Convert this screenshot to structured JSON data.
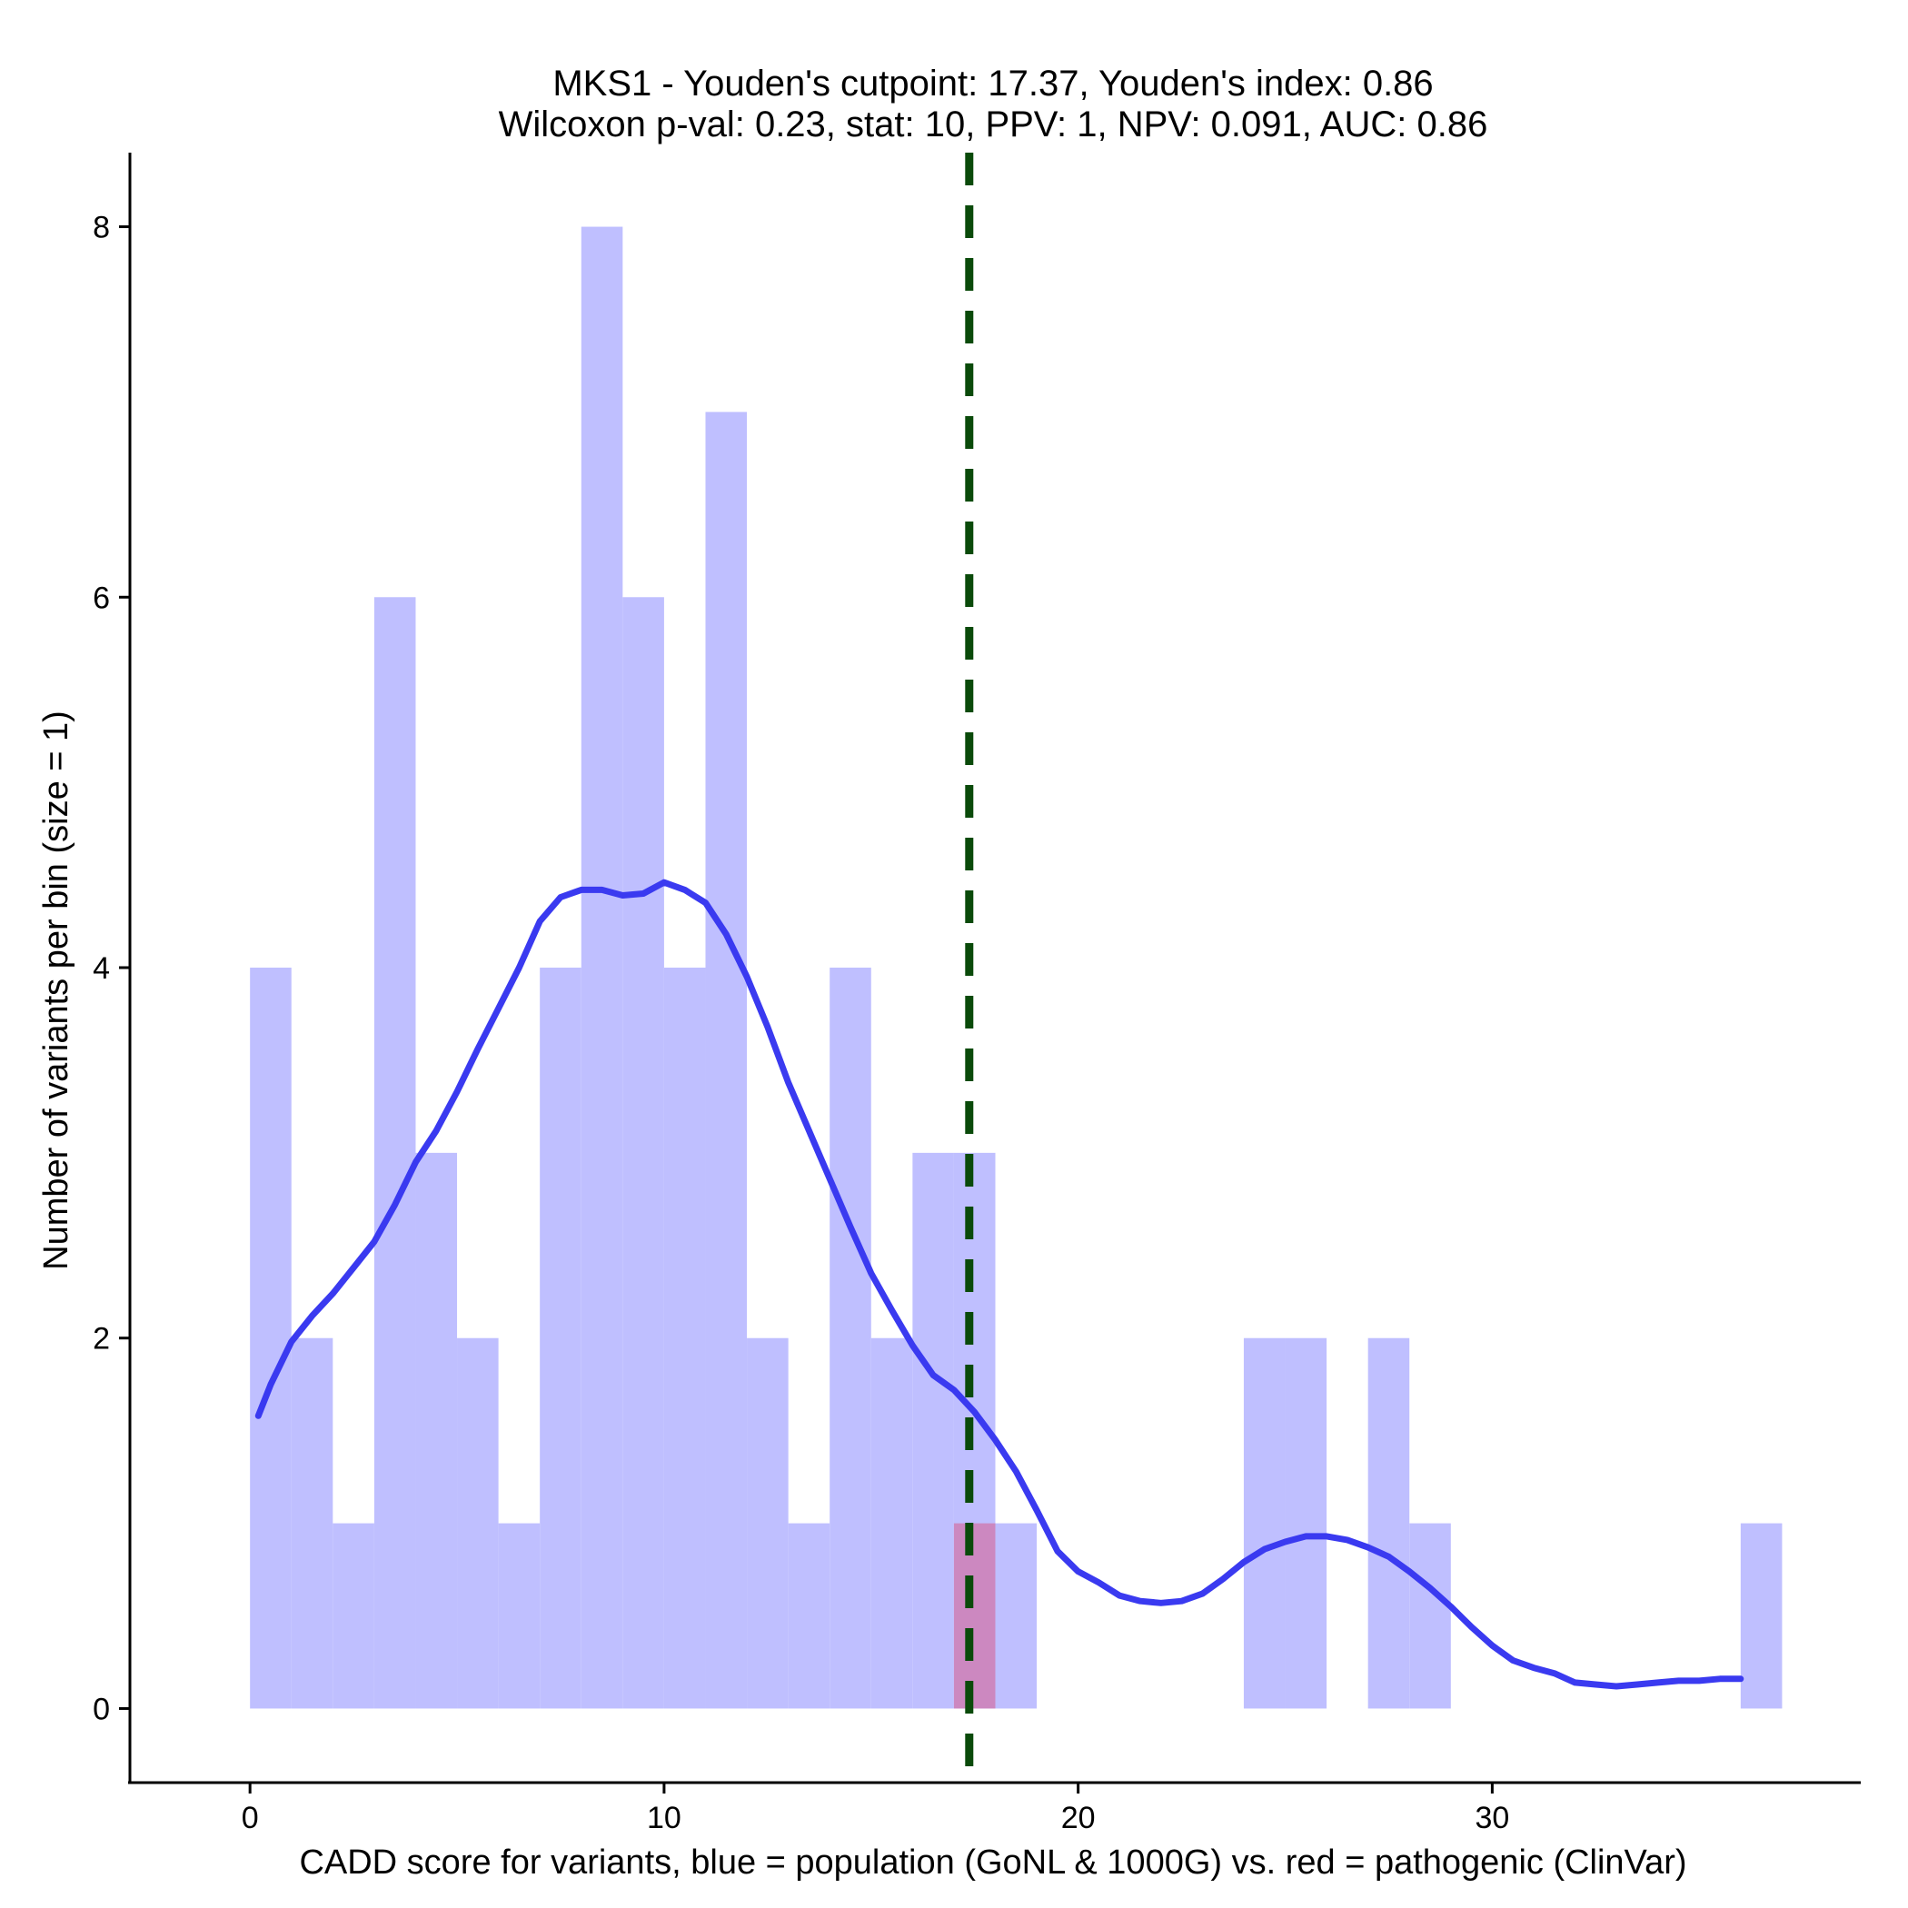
{
  "chart_data": {
    "type": "bar",
    "title_line1": "MKS1 - Youden's cutpoint: 17.37, Youden's index: 0.86",
    "title_line2": "Wilcoxon p-val: 0.23, stat: 10, PPV: 1, NPV: 0.091, AUC: 0.86",
    "xlabel": "CADD score for variants, blue = population (GoNL & 1000G) vs. red = pathogenic (ClinVar)",
    "ylabel": "Number of variants per bin (size = 1)",
    "xlim": [
      -2.9,
      38.9
    ],
    "ylim": [
      -0.4,
      8.4
    ],
    "xticks": [
      0,
      10,
      20,
      30
    ],
    "yticks": [
      0,
      2,
      4,
      6,
      8
    ],
    "bin_width": 1,
    "cutpoint": 17.37,
    "series": [
      {
        "name": "population (GoNL & 1000G)",
        "color": "#bfbfff",
        "bins": [
          {
            "start": 0,
            "count": 4
          },
          {
            "start": 1,
            "count": 2
          },
          {
            "start": 2,
            "count": 1
          },
          {
            "start": 3,
            "count": 6
          },
          {
            "start": 4,
            "count": 3
          },
          {
            "start": 5,
            "count": 2
          },
          {
            "start": 6,
            "count": 1
          },
          {
            "start": 7,
            "count": 4
          },
          {
            "start": 8,
            "count": 8
          },
          {
            "start": 9,
            "count": 6
          },
          {
            "start": 10,
            "count": 4
          },
          {
            "start": 11,
            "count": 7
          },
          {
            "start": 12,
            "count": 2
          },
          {
            "start": 13,
            "count": 1
          },
          {
            "start": 14,
            "count": 4
          },
          {
            "start": 15,
            "count": 2
          },
          {
            "start": 16,
            "count": 3
          },
          {
            "start": 17,
            "count": 3
          },
          {
            "start": 18,
            "count": 1
          },
          {
            "start": 24,
            "count": 2
          },
          {
            "start": 25,
            "count": 2
          },
          {
            "start": 27,
            "count": 2
          },
          {
            "start": 28,
            "count": 1
          },
          {
            "start": 36,
            "count": 1
          }
        ]
      },
      {
        "name": "pathogenic (ClinVar)",
        "color": "#cc88c0",
        "bins": [
          {
            "start": 17,
            "count": 1
          }
        ]
      }
    ],
    "density": {
      "color": "#3a3af0",
      "x": [
        0.2,
        0.5,
        1.0,
        1.5,
        2.0,
        2.5,
        3.0,
        3.5,
        4.0,
        4.5,
        5.0,
        5.5,
        6.0,
        6.5,
        7.0,
        7.5,
        8.0,
        8.5,
        9.0,
        9.5,
        10.0,
        10.5,
        11.0,
        11.5,
        12.0,
        12.5,
        13.0,
        13.5,
        14.0,
        14.5,
        15.0,
        15.5,
        16.0,
        16.5,
        17.0,
        17.5,
        18.0,
        18.5,
        19.0,
        19.5,
        20.0,
        20.5,
        21.0,
        21.5,
        22.0,
        22.5,
        23.0,
        23.5,
        24.0,
        24.5,
        25.0,
        25.5,
        26.0,
        26.5,
        27.0,
        27.5,
        28.0,
        28.5,
        29.0,
        29.5,
        30.0,
        30.5,
        31.0,
        31.5,
        32.0,
        32.5,
        33.0,
        33.5,
        34.0,
        34.5,
        35.0,
        35.5,
        36.0
      ],
      "y": [
        1.58,
        1.75,
        1.98,
        2.12,
        2.24,
        2.38,
        2.52,
        2.72,
        2.95,
        3.12,
        3.33,
        3.56,
        3.78,
        4.0,
        4.25,
        4.38,
        4.42,
        4.42,
        4.39,
        4.4,
        4.46,
        4.42,
        4.35,
        4.18,
        3.95,
        3.68,
        3.38,
        3.12,
        2.86,
        2.6,
        2.35,
        2.15,
        1.96,
        1.8,
        1.72,
        1.6,
        1.45,
        1.28,
        1.07,
        0.85,
        0.74,
        0.68,
        0.61,
        0.58,
        0.57,
        0.58,
        0.62,
        0.7,
        0.79,
        0.86,
        0.9,
        0.93,
        0.93,
        0.91,
        0.87,
        0.82,
        0.74,
        0.65,
        0.55,
        0.44,
        0.34,
        0.26,
        0.22,
        0.19,
        0.14,
        0.13,
        0.12,
        0.13,
        0.14,
        0.15,
        0.15,
        0.16,
        0.16
      ]
    },
    "grid": false,
    "legend": "none"
  }
}
